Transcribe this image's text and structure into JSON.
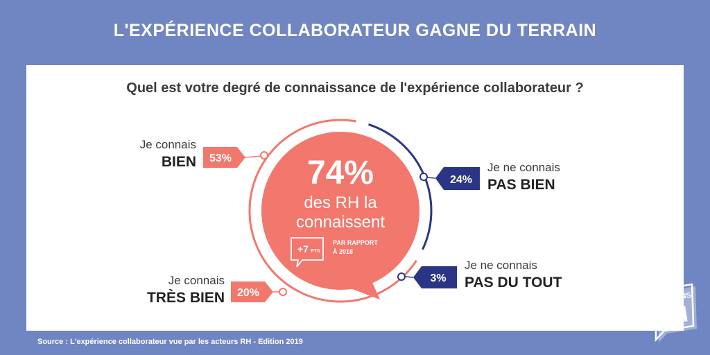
{
  "header": {
    "title": "L'EXPÉRIENCE COLLABORATEUR GAGNE DU TERRAIN"
  },
  "card": {
    "question": "Quel est votre degré de connaissance de l'expérience collaborateur ?"
  },
  "center": {
    "pct": "74%",
    "line1": "des RH la",
    "line2": "connaissent",
    "delta": "+7",
    "delta_unit": "PTS",
    "compare_line1": "PAR RAPPORT",
    "compare_line2": "À 2018"
  },
  "footer": {
    "source": "Source : L'expérience collaborateur vue par les acteurs RH - Edition 2019"
  },
  "logo": {
    "top": "PARLONS",
    "main": "RH"
  },
  "colors": {
    "background": "#7086c3",
    "salmon": "#f2776c",
    "navy": "#2b3585"
  },
  "chart_data": {
    "type": "pie",
    "title": "Quel est votre degré de connaissance de l'expérience collaborateur ?",
    "categories": [
      {
        "label_top": "Je connais",
        "label_main": "BIEN",
        "value": 53,
        "value_text": "53%"
      },
      {
        "label_top": "Je connais",
        "label_main": "TRÈS BIEN",
        "value": 20,
        "value_text": "20%"
      },
      {
        "label_top": "Je ne connais",
        "label_main": "PAS BIEN",
        "value": 24,
        "value_text": "24%"
      },
      {
        "label_top": "Je ne connais",
        "label_main": "PAS DU TOUT",
        "value": 3,
        "value_text": "3%"
      }
    ]
  }
}
